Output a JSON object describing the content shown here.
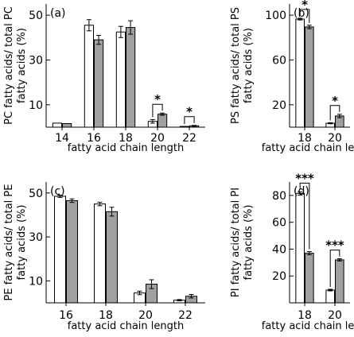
{
  "colors": {
    "open_bar": "#ffffff",
    "filled_bar": "#a0a0a0",
    "axis": "#000000"
  },
  "chart_data": [
    {
      "id": "a",
      "type": "bar",
      "panel_label": "(a)",
      "title": "",
      "ylabel_line1": "PC fatty acids/ total PC",
      "ylabel_line2": "fatty acids (%)",
      "xlabel": "fatty acid chain length",
      "ylim": [
        0,
        55
      ],
      "yticks": [
        10,
        30,
        50
      ],
      "categories": [
        "14",
        "16",
        "18",
        "20",
        "22"
      ],
      "series": [
        {
          "fill": "open",
          "values": [
            1.8,
            45.5,
            42.5,
            2.6,
            0.3
          ],
          "errors": [
            0,
            2.5,
            2.5,
            0.8,
            0
          ]
        },
        {
          "fill": "gray",
          "values": [
            1.6,
            39.0,
            44.5,
            5.8,
            0.6
          ],
          "errors": [
            0,
            2.0,
            3.0,
            0.5,
            0.2
          ]
        }
      ],
      "significance": [
        {
          "category": "20",
          "label": "*"
        },
        {
          "category": "22",
          "label": "*"
        }
      ]
    },
    {
      "id": "b",
      "type": "bar",
      "panel_label": "(b)",
      "title": "",
      "ylabel_line1": "PS fatty acids/ total PS",
      "ylabel_line2": "fatty acids (%)",
      "xlabel": "fatty acid chain length",
      "ylim": [
        0,
        110
      ],
      "yticks": [
        20,
        60,
        100
      ],
      "categories": [
        "18",
        "20"
      ],
      "series": [
        {
          "fill": "open",
          "values": [
            96.5,
            3.5
          ],
          "errors": [
            0.8,
            0.5
          ]
        },
        {
          "fill": "gray",
          "values": [
            89.5,
            10.0
          ],
          "errors": [
            1.5,
            1.5
          ]
        }
      ],
      "significance": [
        {
          "category": "18",
          "label": "*"
        },
        {
          "category": "20",
          "label": "*"
        }
      ]
    },
    {
      "id": "c",
      "type": "bar",
      "panel_label": "(c)",
      "title": "",
      "ylabel_line1": "PE fatty acids/ total PE",
      "ylabel_line2": "fatty acids (%)",
      "xlabel": "fatty acid chain length",
      "ylim": [
        0,
        55
      ],
      "yticks": [
        10,
        30,
        50
      ],
      "categories": [
        "16",
        "18",
        "20",
        "22"
      ],
      "series": [
        {
          "fill": "open",
          "values": [
            48.5,
            45.0,
            4.5,
            1.2
          ],
          "errors": [
            0.5,
            0.8,
            0.8,
            0.3
          ]
        },
        {
          "fill": "gray",
          "values": [
            46.5,
            41.5,
            8.5,
            3.0
          ],
          "errors": [
            0.8,
            2.0,
            2.0,
            0.8
          ]
        }
      ],
      "significance": []
    },
    {
      "id": "d",
      "type": "bar",
      "panel_label": "(d)",
      "title": "",
      "ylabel_line1": "PI fatty acids/ total PI",
      "ylabel_line2": "fatty acids (%)",
      "xlabel": "fatty acid chain length",
      "ylim": [
        0,
        90
      ],
      "yticks": [
        20,
        40,
        60,
        80
      ],
      "categories": [
        "18",
        "20"
      ],
      "series": [
        {
          "fill": "open",
          "values": [
            81.5,
            9.5
          ],
          "errors": [
            1.2,
            0.6
          ]
        },
        {
          "fill": "gray",
          "values": [
            37.0,
            32.0
          ],
          "errors": [
            1.2,
            0.8
          ]
        }
      ],
      "significance": [
        {
          "category": "18",
          "label": "***"
        },
        {
          "category": "20",
          "label": "***"
        }
      ]
    }
  ]
}
